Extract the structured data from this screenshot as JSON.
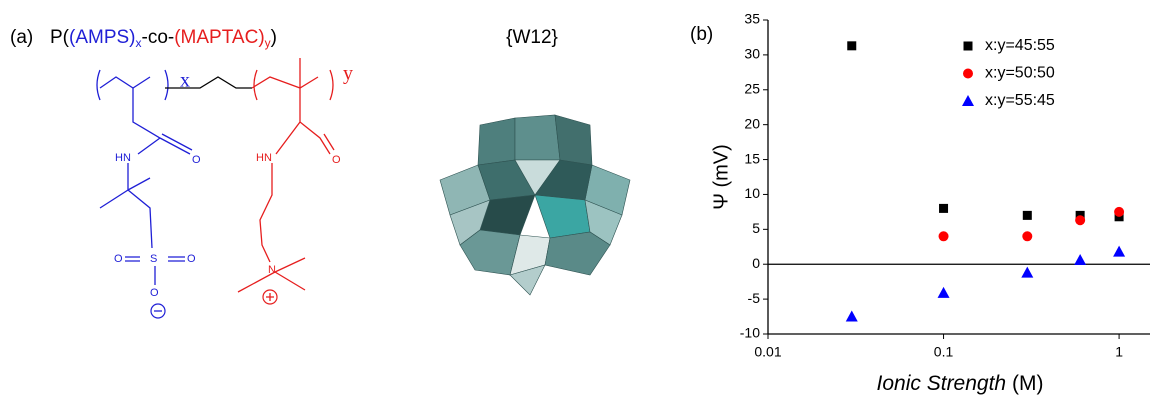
{
  "panel_a": {
    "label": "(a)",
    "formula": {
      "p_open": "P(",
      "block1": "(AMPS)",
      "sub1": "x",
      "link": "-co-",
      "block2": "(MAPTAC)",
      "sub2": "y",
      "p_close": ")"
    },
    "left_labels": [
      "x",
      "HN",
      "O",
      "O",
      "S",
      "O",
      "O"
    ],
    "right_labels": [
      "y",
      "HN",
      "O",
      "N"
    ],
    "cluster_label": "{W12}"
  },
  "chart_data": {
    "type": "scatter",
    "panel_label": "(b)",
    "x_label": "Ionic Strength",
    "x_label_unit": "(M)",
    "y_label": "Ψ (mV)",
    "x": [
      0.03,
      0.1,
      0.3,
      0.6,
      1
    ],
    "series": [
      {
        "name": "x:y=45:55",
        "color": "#000000",
        "marker": "square",
        "values": [
          31.3,
          8,
          7,
          7,
          6.8
        ]
      },
      {
        "name": "x:y=50:50",
        "color": "#ff0000",
        "marker": "circle",
        "values": [
          null,
          4,
          4,
          6.3,
          7.5
        ]
      },
      {
        "name": "x:y=55:45",
        "color": "#0000ff",
        "marker": "triangle",
        "values": [
          -7.5,
          -4.1,
          -1.2,
          0.6,
          1.8
        ]
      }
    ],
    "xscale": "log",
    "xlim": [
      0.01,
      1.5
    ],
    "xticks": [
      0.01,
      0.1,
      1
    ],
    "ylim": [
      -10,
      35
    ],
    "yticks": [
      -10,
      -5,
      0,
      5,
      10,
      15,
      20,
      25,
      30,
      35
    ],
    "legend": "upper right",
    "zero_line": true
  }
}
